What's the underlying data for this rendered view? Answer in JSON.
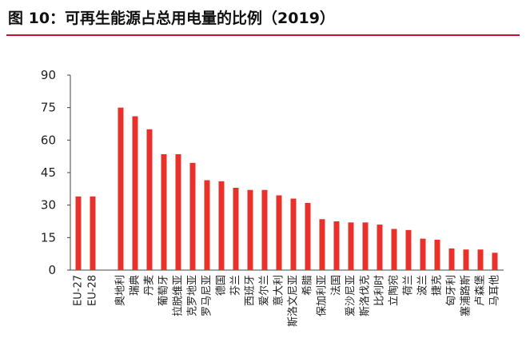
{
  "title": "图 10：可再生能源占总用电量的比例（2019）",
  "chart_data": {
    "type": "bar",
    "title": "图 10：可再生能源占总用电量的比例（2019）",
    "xlabel": "",
    "ylabel": "",
    "ylim": [
      0,
      90
    ],
    "yticks": [
      0,
      15,
      30,
      45,
      60,
      75,
      90
    ],
    "grid": false,
    "bar_color": "#e8312a",
    "categories": [
      "EU-27",
      "EU-28",
      "奥地利",
      "瑞典",
      "丹麦",
      "葡萄牙",
      "拉脱维亚",
      "克罗地亚",
      "罗马尼亚",
      "德国",
      "芬兰",
      "西班牙",
      "爱尔兰",
      "意大利",
      "斯洛文尼亚",
      "希腊",
      "保加利亚",
      "法国",
      "爱沙尼亚",
      "斯洛伐克",
      "比利时",
      "立陶宛",
      "荷兰",
      "波兰",
      "捷克",
      "匈牙利",
      "塞浦路斯",
      "卢森堡",
      "马耳他"
    ],
    "values": [
      34,
      34,
      75,
      71,
      65,
      53.5,
      53.5,
      49.5,
      41.5,
      41,
      38,
      37,
      37,
      34.5,
      33,
      31,
      23.5,
      22.5,
      22,
      22,
      21,
      19,
      18.5,
      14.5,
      14,
      10,
      9.5,
      9.5,
      8
    ]
  }
}
